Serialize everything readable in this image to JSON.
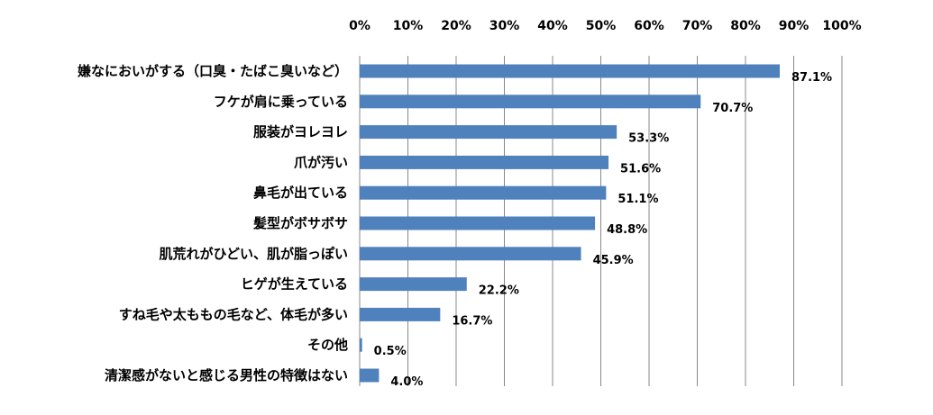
{
  "chart_data": {
    "type": "bar",
    "orientation": "horizontal",
    "categories": [
      "嫌なにおいがする（口臭・たばこ臭いなど）",
      "フケが肩に乗っている",
      "服装がヨレヨレ",
      "爪が汚い",
      "鼻毛が出ている",
      "髪型がボサボサ",
      "肌荒れがひどい、肌が脂っぽい",
      "ヒゲが生えている",
      "すね毛や太ももの毛など、体毛が多い",
      "その他",
      "清潔感がないと感じる男性の特徴はない"
    ],
    "values": [
      87.1,
      70.7,
      53.3,
      51.6,
      51.1,
      48.8,
      45.9,
      22.2,
      16.7,
      0.5,
      4.0
    ],
    "data_labels": [
      "87.1%",
      "70.7%",
      "53.3%",
      "51.6%",
      "51.1%",
      "48.8%",
      "45.9%",
      "22.2%",
      "16.7%",
      "0.5%",
      "4.0%"
    ],
    "x_ticks": [
      "0%",
      "10%",
      "20%",
      "30%",
      "40%",
      "50%",
      "60%",
      "70%",
      "80%",
      "90%",
      "100%"
    ],
    "xlim": [
      0,
      100
    ],
    "x_axis_position": "top",
    "grid": true,
    "legend": "none",
    "bar_color": "#4F81BD",
    "grid_color": "#888888",
    "title": "",
    "xlabel": "",
    "ylabel": ""
  }
}
